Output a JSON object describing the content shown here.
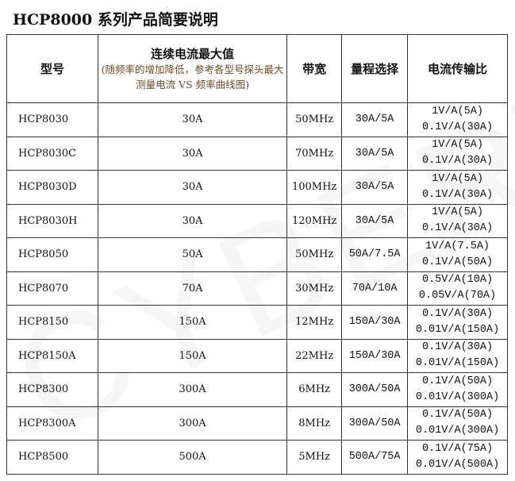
{
  "title": "HCP8000 系列产品简要说明",
  "headers": {
    "model": "型号",
    "current": "连续电流最大值",
    "current_note": "(随频率的增加降低，参考各型号探头最大测量电流 VS 频率曲线图)",
    "bandwidth": "带宽",
    "range": "量程选择",
    "ratio": "电流传输比"
  },
  "rows": [
    {
      "model": "HCP8030",
      "current": "30A",
      "bandwidth": "50MHz",
      "range": "30A/5A",
      "ratio": [
        "1V/A(5A)",
        "0.1V/A(30A)"
      ]
    },
    {
      "model": "HCP8030C",
      "current": "30A",
      "bandwidth": "70MHz",
      "range": "30A/5A",
      "ratio": [
        "1V/A(5A)",
        "0.1V/A(30A)"
      ]
    },
    {
      "model": "HCP8030D",
      "current": "30A",
      "bandwidth": "100MHz",
      "range": "30A/5A",
      "ratio": [
        "1V/A(5A)",
        "0.1V/A(30A)"
      ]
    },
    {
      "model": "HCP8030H",
      "current": "30A",
      "bandwidth": "120MHz",
      "range": "30A/5A",
      "ratio": [
        "1V/A(5A)",
        "0.1V/A(30A)"
      ]
    },
    {
      "model": "HCP8050",
      "current": "50A",
      "bandwidth": "50MHz",
      "range": "50A/7.5A",
      "ratio": [
        "1V/A(7.5A)",
        "0.1V/A(50A)"
      ]
    },
    {
      "model": "HCP8070",
      "current": "70A",
      "bandwidth": "30MHz",
      "range": "70A/10A",
      "ratio": [
        "0.5V/A(10A)",
        "0.05V/A(70A)"
      ]
    },
    {
      "model": "HCP8150",
      "current": "150A",
      "bandwidth": "12MHz",
      "range": "150A/30A",
      "ratio": [
        "0.1V/A(30A)",
        "0.01V/A(150A)"
      ]
    },
    {
      "model": "HCP8150A",
      "current": "150A",
      "bandwidth": "22MHz",
      "range": "150A/30A",
      "ratio": [
        "0.1V/A(30A)",
        "0.01V/A(150A)"
      ]
    },
    {
      "model": "HCP8300",
      "current": "300A",
      "bandwidth": "6MHz",
      "range": "300A/50A",
      "ratio": [
        "0.1V/A(50A)",
        "0.01V/A(300A)"
      ]
    },
    {
      "model": "HCP8300A",
      "current": "300A",
      "bandwidth": "8MHz",
      "range": "300A/50A",
      "ratio": [
        "0.1V/A(50A)",
        "0.01V/A(300A)"
      ]
    },
    {
      "model": "HCP8500",
      "current": "500A",
      "bandwidth": "5MHz",
      "range": "500A/75A",
      "ratio": [
        "0.1V/A(75A)",
        "0.01V/A(500A)"
      ]
    }
  ],
  "watermark": "CYBERTEK"
}
